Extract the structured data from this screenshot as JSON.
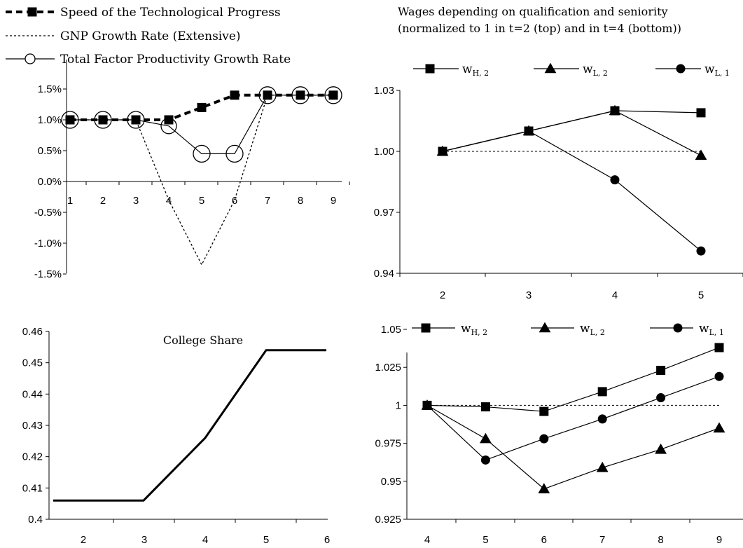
{
  "chart_data": [
    {
      "type": "line",
      "legend_placement": "top",
      "x": [
        1,
        2,
        3,
        4,
        5,
        6,
        7,
        8,
        9
      ],
      "series": [
        {
          "name": "Speed of the Technological Progress",
          "values": [
            1.0,
            1.0,
            1.0,
            1.0,
            1.2,
            1.4,
            1.4,
            1.4,
            1.4
          ]
        },
        {
          "name": "GNP Growth Rate (Extensive)",
          "values": [
            1.0,
            1.0,
            1.0,
            -0.3,
            -1.35,
            -0.3,
            1.4,
            1.4,
            1.4
          ]
        },
        {
          "name": "Total Factor Productivity Growth Rate",
          "values": [
            1.0,
            1.0,
            1.0,
            0.9,
            0.45,
            0.45,
            1.4,
            1.4,
            1.4
          ]
        }
      ],
      "ylim": [
        -1.5,
        1.5
      ],
      "yticks": [
        "1.5%",
        "1.0%",
        "0.5%",
        "0.0%",
        "-0.5%",
        "-1.0%",
        "-1.5%"
      ],
      "xticks": [
        "1",
        "2",
        "3",
        "4",
        "5",
        "6",
        "7",
        "8",
        "9"
      ],
      "colors": {
        "line": "#000000"
      }
    },
    {
      "type": "line",
      "title": "Wages depending on qualification and seniority",
      "subtitle": "(normalized to 1 in t=2 (top) and in t=4 (bottom))",
      "legend_placement": "top",
      "x": [
        2,
        3,
        4,
        5
      ],
      "series": [
        {
          "name": "w_{H,2}",
          "name_main": "w",
          "name_sub": "H, 2",
          "marker": "square",
          "values": [
            1.0,
            1.01,
            1.02,
            1.019
          ]
        },
        {
          "name": "w_{L,2}",
          "name_main": "w",
          "name_sub": "L, 2",
          "marker": "triangle",
          "values": [
            1.0,
            1.01,
            1.02,
            0.998
          ]
        },
        {
          "name": "w_{L,1}",
          "name_main": "w",
          "name_sub": "L, 1",
          "marker": "circle",
          "values": [
            1.0,
            1.01,
            0.986,
            0.951
          ]
        }
      ],
      "reference_line": 1.0,
      "ylim": [
        0.94,
        1.03
      ],
      "yticks": [
        "1.03",
        "1.00",
        "0.97",
        "0.94"
      ],
      "xticks": [
        "2",
        "3",
        "4",
        "5"
      ]
    },
    {
      "type": "line",
      "title": "College Share",
      "x": [
        2,
        3,
        4,
        5,
        6
      ],
      "series": [
        {
          "values": [
            0.406,
            0.406,
            0.426,
            0.454,
            0.454
          ]
        }
      ],
      "ylim": [
        0.4,
        0.46
      ],
      "yticks": [
        "0.46",
        "0.45",
        "0.44",
        "0.43",
        "0.42",
        "0.41",
        "0.4"
      ],
      "xticks": [
        "2",
        "3",
        "4",
        "5",
        "6"
      ]
    },
    {
      "type": "line",
      "legend_placement": "top",
      "x": [
        4,
        5,
        6,
        7,
        8,
        9
      ],
      "series": [
        {
          "name": "w_{H,2}",
          "name_main": "w",
          "name_sub": "H, 2",
          "marker": "square",
          "values": [
            1.0,
            0.999,
            0.996,
            1.009,
            1.023,
            1.038
          ]
        },
        {
          "name": "w_{L,2}",
          "name_main": "w",
          "name_sub": "L, 2",
          "marker": "triangle",
          "values": [
            1.0,
            0.978,
            0.945,
            0.959,
            0.971,
            0.985
          ]
        },
        {
          "name": "w_{L,1}",
          "name_main": "w",
          "name_sub": "L, 1",
          "marker": "circle",
          "values": [
            1.0,
            0.964,
            0.978,
            0.991,
            1.005,
            1.019
          ]
        }
      ],
      "reference_line": 1.0,
      "ylim": [
        0.925,
        1.05
      ],
      "yticks": [
        "1.05",
        "1.025",
        "1",
        "0.975",
        "0.95",
        "0.925"
      ],
      "xticks": [
        "4",
        "5",
        "6",
        "7",
        "8",
        "9"
      ]
    }
  ]
}
